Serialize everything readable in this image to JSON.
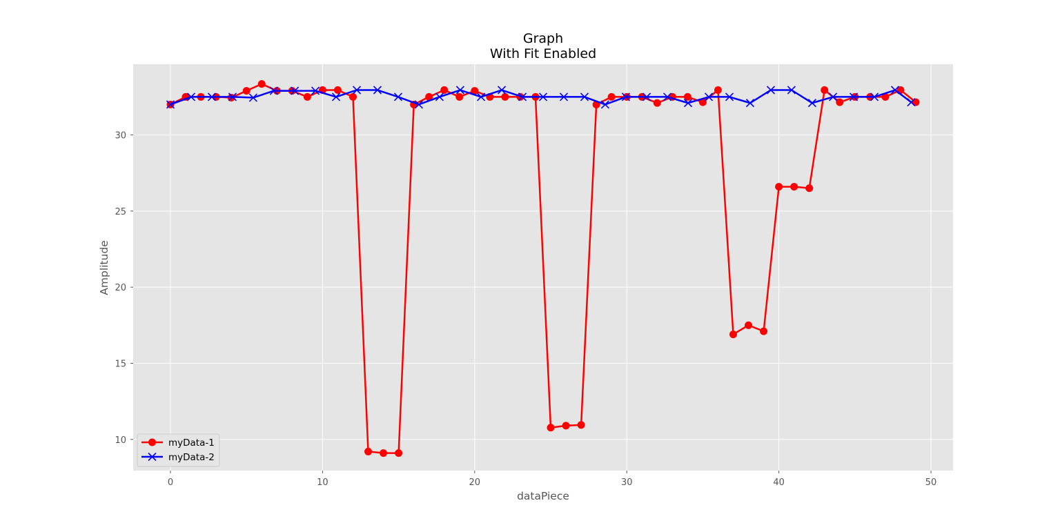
{
  "chart_data": {
    "type": "line",
    "title": "Graph",
    "subtitle": "With Fit Enabled",
    "xlabel": "dataPiece",
    "ylabel": "Amplitude",
    "xlim": [
      -2.45,
      51.45
    ],
    "ylim": [
      7.95,
      34.65
    ],
    "xticks": [
      0,
      10,
      20,
      30,
      40,
      50
    ],
    "yticks": [
      10,
      15,
      20,
      25,
      30
    ],
    "grid": true,
    "style": "ggplot",
    "legend_position": "lower left",
    "series": [
      {
        "name": "myData-1",
        "color": "#ff0000",
        "marker": "circle",
        "x": [
          0,
          1,
          2,
          3,
          4,
          5,
          6,
          7,
          8,
          9,
          10,
          11,
          12,
          13,
          14,
          15,
          16,
          17,
          18,
          19,
          20,
          21,
          22,
          23,
          24,
          25,
          26,
          27,
          28,
          29,
          30,
          31,
          32,
          33,
          34,
          35,
          36,
          37,
          38,
          39,
          40,
          41,
          42,
          43,
          44,
          45,
          46,
          47,
          48,
          49
        ],
        "values": [
          32.0,
          32.5,
          32.5,
          32.5,
          32.45,
          32.9,
          33.35,
          32.9,
          32.9,
          32.5,
          32.95,
          32.95,
          32.5,
          9.2,
          9.1,
          9.1,
          32.0,
          32.5,
          32.95,
          32.5,
          32.9,
          32.5,
          32.5,
          32.5,
          32.5,
          10.77,
          10.9,
          10.95,
          32.0,
          32.5,
          32.5,
          32.5,
          32.1,
          32.5,
          32.5,
          32.15,
          32.95,
          16.9,
          17.5,
          17.1,
          26.6,
          26.6,
          26.5,
          32.95,
          32.15,
          32.5,
          32.5,
          32.5,
          32.95,
          32.15
        ]
      },
      {
        "name": "myData-2",
        "color": "#0000ff",
        "marker": "x",
        "x": [
          0,
          1.36,
          2.72,
          4.08,
          5.44,
          6.8,
          8.17,
          9.53,
          10.89,
          12.25,
          13.61,
          14.97,
          16.33,
          17.69,
          19.05,
          20.42,
          21.78,
          23.14,
          24.5,
          25.86,
          27.22,
          28.58,
          29.94,
          31.31,
          32.67,
          34.03,
          35.39,
          36.75,
          38.11,
          39.47,
          40.83,
          42.19,
          43.56,
          44.92,
          46.28,
          47.64,
          48.7
        ],
        "values": [
          32.0,
          32.5,
          32.5,
          32.5,
          32.45,
          32.9,
          32.9,
          32.9,
          32.5,
          32.95,
          32.95,
          32.5,
          32.0,
          32.5,
          32.95,
          32.5,
          32.95,
          32.5,
          32.5,
          32.5,
          32.5,
          32.0,
          32.5,
          32.5,
          32.5,
          32.1,
          32.5,
          32.5,
          32.1,
          32.95,
          32.95,
          32.1,
          32.5,
          32.5,
          32.5,
          32.95,
          32.15
        ]
      }
    ]
  },
  "colors": {
    "plot_background": "#e5e5e5",
    "grid": "#ffffff",
    "legend_background": "#e5e5e5",
    "legend_border": "#cccccc"
  }
}
